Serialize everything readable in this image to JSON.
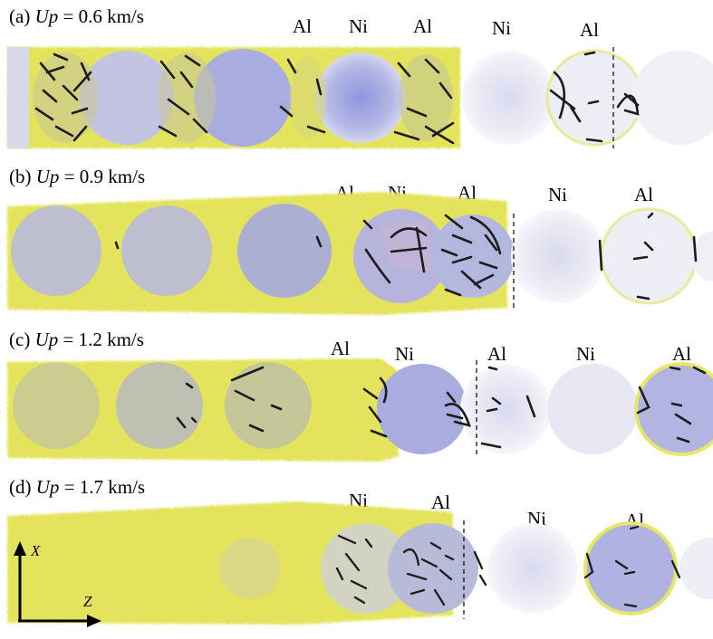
{
  "panels": [
    {
      "id": "a",
      "label_prefix": "(a) ",
      "label_var": "Up",
      "label_value": " = 0.6 km/s",
      "materials": [
        "Al",
        "Ni",
        "Al",
        "Ni",
        "Al"
      ]
    },
    {
      "id": "b",
      "label_prefix": "(b) ",
      "label_var": "Up",
      "label_value": " = 0.9 km/s",
      "materials": [
        "Al",
        "Ni",
        "Al",
        "Ni",
        "Al"
      ]
    },
    {
      "id": "c",
      "label_prefix": "(c) ",
      "label_var": "Up",
      "label_value": " = 1.2 km/s",
      "materials": [
        "Al",
        "Ni",
        "Al",
        "Ni",
        "Al"
      ]
    },
    {
      "id": "d",
      "label_prefix": "(d) ",
      "label_var": "Up",
      "label_value": " = 1.7 km/s",
      "materials": [
        "Ni",
        "Al",
        "Ni",
        "Al"
      ]
    }
  ],
  "axes": {
    "vertical": "X",
    "horizontal": "Z"
  },
  "colors": {
    "al_matter": "#e3e45c",
    "al_dark": "#cfd03a",
    "ni_fill": "#aeb2e6",
    "ni_pale": "#e8e8f4",
    "dislocation": "#1c1c1c"
  }
}
